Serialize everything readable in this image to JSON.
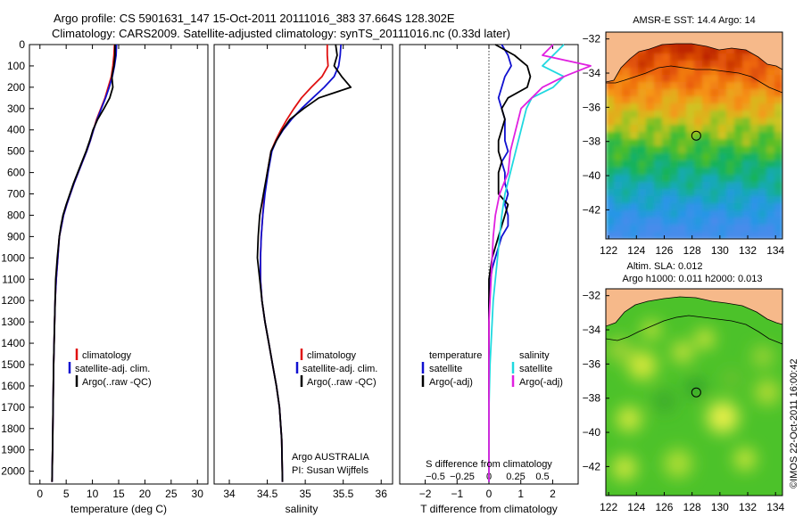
{
  "header": {
    "line1": "Argo profile: CS 5901631_147 15-Oct-2011 20111016_383 37.664S 128.302E",
    "line2": "Climatology: CARS2009. Satellite-adjusted climatology: synTS_20111016.nc (0.33d later)"
  },
  "colors": {
    "climatology": "#e01010",
    "satellite": "#1010d0",
    "argo": "#000000",
    "salinity_satellite": "#20d8e0",
    "salinity_argo": "#e020e0",
    "land": "#f6b98a"
  },
  "chart_data": [
    {
      "id": "temperature",
      "type": "line",
      "xlabel": "temperature (deg C)",
      "ylabel": "",
      "xlim": [
        -2,
        32
      ],
      "ylim": [
        2060,
        0
      ],
      "xticks": [
        0,
        5,
        10,
        15,
        20,
        25,
        30
      ],
      "yticks": [
        0,
        100,
        200,
        300,
        400,
        500,
        600,
        700,
        800,
        900,
        1000,
        1100,
        1200,
        1300,
        1400,
        1500,
        1600,
        1700,
        1800,
        1900,
        2000
      ],
      "legend": [
        "climatology",
        "satellite-adj. clim.",
        "Argo(..raw -QC)"
      ],
      "series": [
        {
          "name": "climatology",
          "color": "#e01010",
          "x": [
            14.2,
            14.1,
            13.9,
            13.6,
            13.0,
            12.4,
            11.6,
            10.8,
            10.2,
            9.6,
            8.9,
            8.1,
            7.3,
            6.5,
            5.8,
            5.1,
            4.5,
            4.1,
            3.7,
            3.4,
            3.1,
            2.9,
            2.8,
            2.6,
            2.5,
            2.4,
            2.3
          ],
          "y": [
            0,
            50,
            100,
            150,
            200,
            250,
            300,
            350,
            400,
            450,
            500,
            550,
            600,
            650,
            700,
            750,
            800,
            850,
            900,
            1000,
            1100,
            1200,
            1300,
            1500,
            1700,
            1900,
            2050
          ]
        },
        {
          "name": "satellite-adj. clim.",
          "color": "#1010d0",
          "x": [
            14.6,
            14.5,
            14.2,
            13.8,
            13.2,
            12.5,
            11.7,
            10.9,
            10.2,
            9.6,
            8.9,
            8.1,
            7.3,
            6.5,
            5.8,
            5.1,
            4.5,
            4.1,
            3.7,
            3.4,
            3.1,
            2.9,
            2.8,
            2.6,
            2.5,
            2.4,
            2.3
          ],
          "y": [
            0,
            50,
            100,
            150,
            200,
            250,
            300,
            350,
            400,
            450,
            500,
            550,
            600,
            650,
            700,
            750,
            800,
            850,
            900,
            1000,
            1100,
            1200,
            1300,
            1500,
            1700,
            1900,
            2050
          ]
        },
        {
          "name": "Argo(..raw -QC)",
          "color": "#000000",
          "x": [
            14.3,
            14.3,
            14.1,
            13.7,
            13.9,
            13.3,
            12.2,
            11.0,
            10.1,
            9.5,
            8.8,
            8.0,
            7.2,
            6.4,
            5.7,
            5.0,
            4.4,
            4.0,
            3.7,
            3.3,
            3.0,
            2.9,
            2.8,
            2.6,
            2.5,
            2.4,
            2.3
          ],
          "y": [
            0,
            50,
            100,
            150,
            200,
            250,
            300,
            350,
            400,
            450,
            500,
            550,
            600,
            650,
            700,
            750,
            800,
            850,
            900,
            1000,
            1100,
            1200,
            1300,
            1500,
            1700,
            1900,
            2050
          ]
        }
      ]
    },
    {
      "id": "salinity",
      "type": "line",
      "xlabel": "salinity",
      "ylabel": "",
      "xlim": [
        33.8,
        36.15
      ],
      "ylim": [
        2060,
        0
      ],
      "xticks": [
        34,
        34.5,
        35,
        35.5,
        36
      ],
      "legend": [
        "climatology",
        "satellite-adj. clim.",
        "Argo(..raw -QC)"
      ],
      "annotation": [
        "Argo AUSTRALIA",
        "PI: Susan Wijffels"
      ],
      "series": [
        {
          "name": "climatology",
          "color": "#e01010",
          "x": [
            35.29,
            35.29,
            35.3,
            35.22,
            35.08,
            34.95,
            34.85,
            34.76,
            34.68,
            34.61,
            34.55,
            34.5,
            34.46,
            34.44,
            34.42,
            34.41,
            34.41,
            34.43,
            34.47,
            34.52,
            34.57,
            34.62,
            34.66,
            34.69,
            34.7
          ],
          "y": [
            0,
            50,
            100,
            150,
            200,
            250,
            300,
            350,
            400,
            450,
            500,
            600,
            700,
            800,
            900,
            1000,
            1100,
            1200,
            1300,
            1400,
            1500,
            1600,
            1700,
            1850,
            2050
          ]
        },
        {
          "name": "satellite-adj. clim.",
          "color": "#1010d0",
          "x": [
            35.47,
            35.46,
            35.44,
            35.38,
            35.25,
            35.1,
            34.95,
            34.82,
            34.71,
            34.62,
            34.56,
            34.51,
            34.47,
            34.44,
            34.42,
            34.41,
            34.41,
            34.43,
            34.47,
            34.52,
            34.57,
            34.62,
            34.66,
            34.69,
            34.7
          ],
          "y": [
            0,
            50,
            100,
            150,
            200,
            250,
            300,
            350,
            400,
            450,
            500,
            600,
            700,
            800,
            900,
            1000,
            1100,
            1200,
            1300,
            1400,
            1500,
            1600,
            1700,
            1850,
            2050
          ]
        },
        {
          "name": "Argo(..raw -QC)",
          "color": "#000000",
          "x": [
            35.4,
            35.42,
            35.38,
            35.48,
            35.6,
            35.18,
            34.98,
            34.8,
            34.7,
            34.62,
            34.55,
            34.5,
            34.45,
            34.4,
            34.38,
            34.37,
            34.4,
            34.43,
            34.47,
            34.52,
            34.57,
            34.62,
            34.66,
            34.69,
            34.7
          ],
          "y": [
            0,
            50,
            100,
            150,
            200,
            250,
            300,
            350,
            400,
            450,
            500,
            600,
            700,
            800,
            900,
            1000,
            1100,
            1200,
            1300,
            1400,
            1500,
            1600,
            1700,
            1850,
            2050
          ]
        }
      ]
    },
    {
      "id": "difference",
      "type": "line",
      "xlabel": "T difference from climatology",
      "xlabel_top": "S difference from climatology",
      "xlim": [
        -2.8,
        2.8
      ],
      "ylim": [
        2060,
        0
      ],
      "xticks": [
        -2,
        -1,
        0,
        1,
        2
      ],
      "sticks": [
        -0.5,
        -0.25,
        0,
        0.25,
        0.5
      ],
      "legend_temperature": {
        "title": "temperature",
        "items": [
          "satellite",
          "Argo(-adj)"
        ]
      },
      "legend_salinity": {
        "title": "salinity",
        "items": [
          "satellite",
          "Argo(-adj)"
        ]
      },
      "series": [
        {
          "name": "temperature satellite",
          "color": "#1010d0",
          "x": [
            0.4,
            0.6,
            0.7,
            0.5,
            0.4,
            0.3,
            0.4,
            0.5,
            0.5,
            0.5,
            0.6,
            0.4,
            0.5,
            0.5,
            0.6,
            0.5,
            0.6,
            0.6,
            0.4,
            0.3,
            0.2,
            0.1,
            0.05,
            0.0,
            0.0,
            0.0,
            0.0
          ],
          "y": [
            0,
            50,
            100,
            150,
            200,
            250,
            300,
            350,
            400,
            450,
            500,
            550,
            600,
            650,
            700,
            750,
            800,
            850,
            900,
            950,
            1000,
            1050,
            1100,
            1200,
            1500,
            1800,
            2050
          ]
        },
        {
          "name": "temperature Argo(-adj)",
          "color": "#000000",
          "x": [
            0.2,
            0.8,
            1.2,
            1.3,
            1.2,
            0.6,
            0.4,
            0.5,
            0.4,
            0.3,
            0.3,
            0.4,
            0.3,
            0.3,
            0.3,
            0.6,
            0.5,
            0.4,
            0.3,
            0.2,
            0.1,
            0.05,
            0.0,
            0.0,
            0.0,
            0.0,
            0.0
          ],
          "y": [
            0,
            50,
            100,
            150,
            200,
            250,
            300,
            350,
            400,
            450,
            500,
            550,
            600,
            650,
            700,
            750,
            800,
            850,
            900,
            950,
            1000,
            1050,
            1100,
            1200,
            1500,
            1800,
            2050
          ]
        },
        {
          "name": "salinity satellite",
          "color": "#20d8e0",
          "x": [
            0.7,
            0.6,
            0.5,
            0.7,
            0.6,
            0.4,
            0.35,
            0.3,
            0.25,
            0.2,
            0.15,
            0.12,
            0.1,
            0.08,
            0.06,
            0.04,
            0.03,
            0.02,
            0.01,
            0.0,
            0.0
          ],
          "y": [
            0,
            50,
            100,
            150,
            200,
            250,
            300,
            400,
            500,
            600,
            700,
            800,
            900,
            1000,
            1100,
            1200,
            1300,
            1400,
            1500,
            1700,
            2050
          ]
        },
        {
          "name": "salinity Argo(-adj)",
          "color": "#e020e0",
          "x": [
            0.6,
            0.5,
            0.95,
            0.7,
            0.5,
            0.4,
            0.3,
            0.25,
            0.2,
            0.18,
            0.1,
            0.06,
            0.04,
            0.03,
            0.02,
            0.0,
            0.0
          ],
          "y": [
            0,
            50,
            100,
            150,
            200,
            250,
            300,
            400,
            500,
            600,
            700,
            800,
            900,
            1000,
            1100,
            1300,
            2050
          ]
        }
      ]
    },
    {
      "id": "sst_map",
      "type": "heatmap",
      "title": "AMSR-E SST: 14.4  Argo: 14",
      "xlim": [
        121.8,
        134.5
      ],
      "ylim": [
        -43.7,
        -31.6
      ],
      "xticks": [
        122,
        124,
        126,
        128,
        130,
        132,
        134
      ],
      "yticks": [
        -32,
        -34,
        -36,
        -38,
        -40,
        -42
      ],
      "argo_position": [
        128.3,
        -37.66
      ]
    },
    {
      "id": "sla_map",
      "type": "heatmap",
      "title_line1": "Altim. SLA: 0.012",
      "title_line2": "Argo h1000: 0.011 h2000: 0.013",
      "xlim": [
        121.8,
        134.5
      ],
      "ylim": [
        -43.7,
        -31.6
      ],
      "xticks": [
        122,
        124,
        126,
        128,
        130,
        132,
        134
      ],
      "yticks": [
        -32,
        -34,
        -36,
        -38,
        -40,
        -42
      ],
      "argo_position": [
        128.3,
        -37.66
      ]
    }
  ],
  "credit": "©IMOS 22-Oct-2011 16:00:42"
}
